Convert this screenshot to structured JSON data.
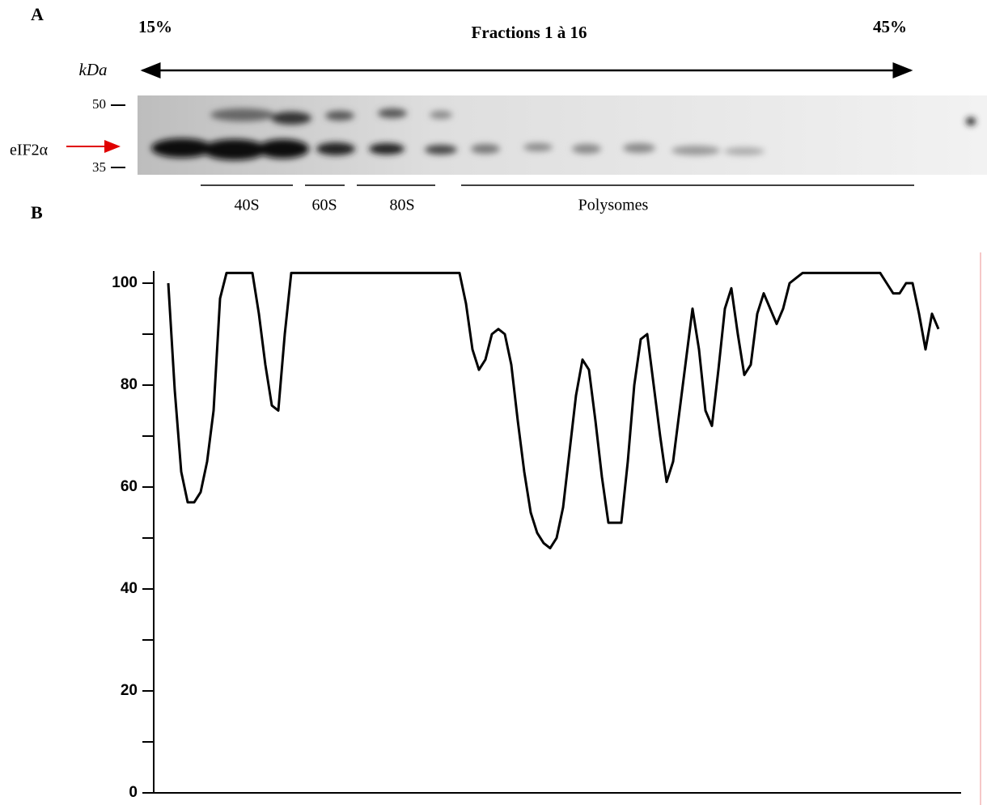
{
  "panel_a": {
    "label": "A",
    "left_percent": "15%",
    "title": "Fractions 1 à 16",
    "right_percent": "45%",
    "kda": "kDa",
    "markers": [
      50,
      35
    ],
    "protein": "eIF2α",
    "fractions": [
      "40S",
      "60S",
      "80S",
      "Polysomes"
    ]
  },
  "panel_b": {
    "label": "B"
  },
  "chart_data": {
    "type": "line",
    "ylim": [
      0,
      100
    ],
    "yticks": [
      0,
      20,
      40,
      60,
      80,
      100
    ],
    "series": [
      {
        "color": "#000000",
        "values": [
          100,
          79,
          63,
          57,
          57,
          59,
          65,
          75,
          97,
          102,
          102,
          102,
          102,
          102,
          94,
          84,
          76,
          75,
          90,
          102,
          102,
          102,
          102,
          102,
          102,
          102,
          102,
          102,
          102,
          102,
          102,
          102,
          102,
          102,
          102,
          102,
          102,
          102,
          102,
          102,
          102,
          102,
          102,
          102,
          102,
          102,
          96,
          87,
          83,
          85,
          90,
          91,
          90,
          84,
          73,
          63,
          55,
          51,
          49,
          48,
          50,
          56,
          67,
          78,
          85,
          83,
          73,
          62,
          53,
          53,
          53,
          65,
          80,
          89,
          90,
          80,
          70,
          61,
          65,
          75,
          85,
          95,
          87,
          75,
          72,
          83,
          95,
          99,
          90,
          82,
          84,
          94,
          98,
          95,
          92,
          95,
          100,
          101,
          102,
          102,
          102,
          102,
          102,
          102,
          102,
          102,
          102,
          102,
          102,
          102,
          102,
          100,
          98,
          98,
          100,
          100,
          94,
          87,
          94,
          91
        ]
      }
    ]
  }
}
